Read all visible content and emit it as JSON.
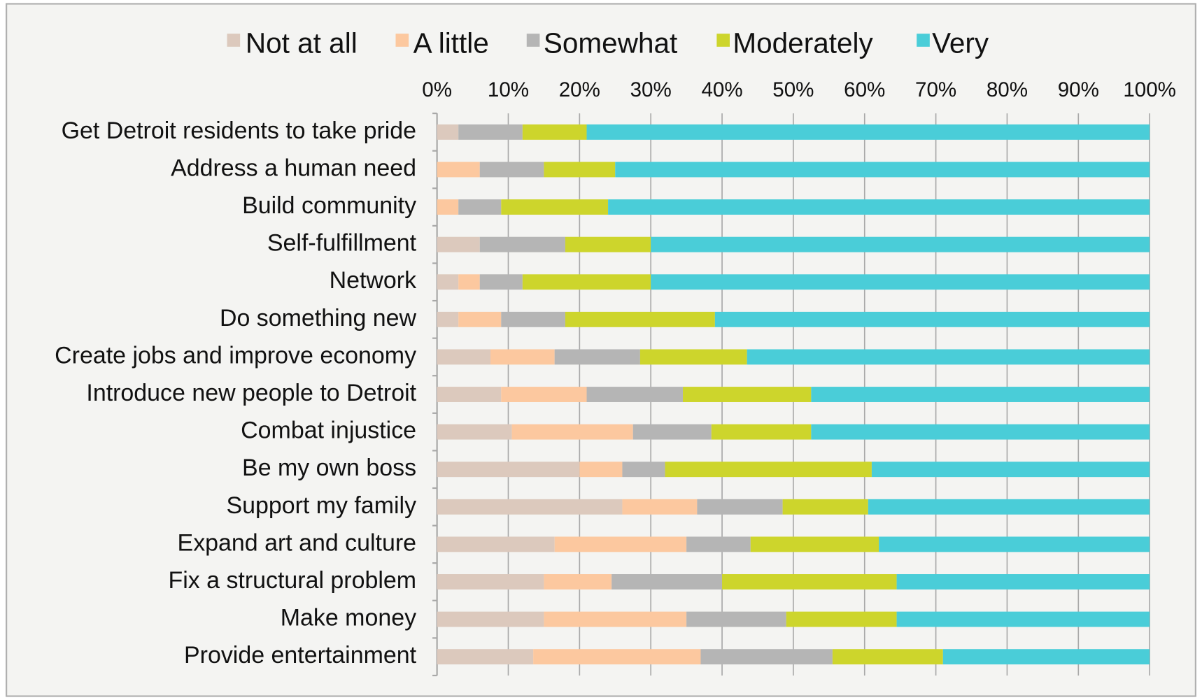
{
  "chart_data": {
    "type": "stacked_barh",
    "categories": [
      "Get Detroit residents to take pride",
      "Address a human need",
      "Build community",
      "Self-fulfillment",
      "Network",
      "Do something new",
      "Create jobs and improve economy",
      "Introduce new people to Detroit",
      "Combat injustice",
      "Be my own boss",
      "Support my family",
      "Expand art and culture",
      "Fix a structural problem",
      "Make money",
      "Provide entertainment"
    ],
    "series": [
      {
        "name": "Not at all",
        "color": "#dcc9bd",
        "values": [
          3,
          0,
          0,
          6,
          3,
          3,
          7.5,
          9,
          10.5,
          20,
          26,
          16.5,
          15,
          15,
          13.5
        ]
      },
      {
        "name": "A little",
        "color": "#fcc89f",
        "values": [
          0,
          6,
          3,
          0,
          3,
          6,
          9,
          12,
          17,
          6,
          10.5,
          18.5,
          9.5,
          20,
          23.5
        ]
      },
      {
        "name": "Somewhat",
        "color": "#b5b5b5",
        "values": [
          9,
          9,
          6,
          12,
          6,
          9,
          12,
          13.5,
          11,
          6,
          12,
          9,
          15.5,
          14,
          18.5
        ]
      },
      {
        "name": "Moderately",
        "color": "#cdd52c",
        "values": [
          9,
          10,
          15,
          12,
          18,
          21,
          15,
          18,
          14,
          29,
          12,
          18,
          24.5,
          15.5,
          15.5
        ]
      },
      {
        "name": "Very",
        "color": "#4acdd8",
        "values": [
          79,
          75,
          76,
          70,
          70,
          61,
          56.5,
          47.5,
          47.5,
          39,
          39.5,
          38,
          35.5,
          35.5,
          29
        ]
      }
    ],
    "xlim": [
      0,
      100
    ],
    "xticks": [
      {
        "value": 0,
        "label": "0%"
      },
      {
        "value": 10,
        "label": "10%"
      },
      {
        "value": 20,
        "label": "20%"
      },
      {
        "value": 30,
        "label": "30%"
      },
      {
        "value": 40,
        "label": "40%"
      },
      {
        "value": 50,
        "label": "50%"
      },
      {
        "value": 60,
        "label": "60%"
      },
      {
        "value": 70,
        "label": "70%"
      },
      {
        "value": 80,
        "label": "80%"
      },
      {
        "value": 90,
        "label": "90%"
      },
      {
        "value": 100,
        "label": "100%"
      }
    ],
    "grid": true,
    "legend": "top"
  }
}
